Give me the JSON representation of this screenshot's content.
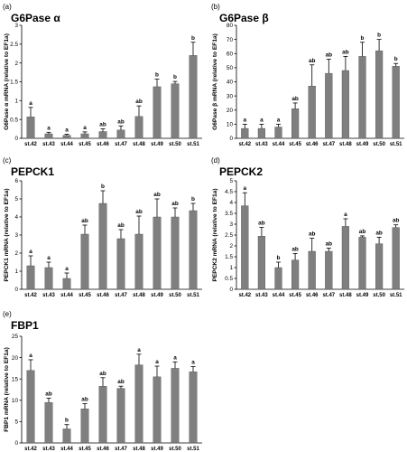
{
  "chart_data": [
    {
      "letter": "(a)",
      "type": "bar",
      "title": "G6Pase α",
      "ylabel": "G6Pase α mRNA (relative to EF1a)",
      "ylim": [
        0,
        3
      ],
      "yticks": [
        0,
        0.5,
        1,
        1.5,
        2,
        2.5,
        3
      ],
      "categories": [
        "st.42",
        "st.43",
        "st.44",
        "st.45",
        "st.46",
        "st.47",
        "st.48",
        "st.49",
        "st.50",
        "st.51"
      ],
      "values": [
        0.57,
        0.12,
        0.08,
        0.12,
        0.18,
        0.22,
        0.58,
        1.37,
        1.45,
        2.2
      ],
      "errors": [
        0.25,
        0.04,
        0.03,
        0.05,
        0.07,
        0.11,
        0.28,
        0.2,
        0.06,
        0.35
      ],
      "labels": [
        "a",
        "a",
        "a",
        "a",
        "ab",
        "ab",
        "ab",
        "b",
        "b",
        "b"
      ]
    },
    {
      "letter": "(b)",
      "type": "bar",
      "title": "G6Pase β",
      "ylabel": "G6Pase β mRNA (relative to EF1a)",
      "ylim": [
        0,
        80
      ],
      "yticks": [
        0,
        10,
        20,
        30,
        40,
        50,
        60,
        70,
        80
      ],
      "categories": [
        "st.42",
        "st.43",
        "st.44",
        "st.45",
        "st.46",
        "st.47",
        "st.48",
        "st.49",
        "st.50",
        "st.51"
      ],
      "values": [
        7,
        7,
        8,
        21,
        37,
        46,
        48,
        58,
        62,
        51
      ],
      "errors": [
        3,
        3,
        2,
        4,
        15,
        10,
        10,
        10,
        8,
        2
      ],
      "labels": [
        "a",
        "a",
        "a",
        "ab",
        "ab",
        "ab",
        "ab",
        "b",
        "b",
        "b"
      ]
    },
    {
      "letter": "(c)",
      "type": "bar",
      "title": "PEPCK1",
      "ylabel": "PEPCK1 mRNA (relative to EF1a)",
      "ylim": [
        0,
        6
      ],
      "yticks": [
        0,
        1,
        2,
        3,
        4,
        5,
        6
      ],
      "categories": [
        "st.42",
        "st.43",
        "st.44",
        "st.45",
        "st.46",
        "st.47",
        "st.48",
        "st.49",
        "st.50",
        "st.51"
      ],
      "values": [
        1.3,
        1.2,
        0.6,
        3.05,
        4.75,
        2.8,
        3.05,
        4.0,
        4.0,
        4.35
      ],
      "errors": [
        0.55,
        0.3,
        0.3,
        0.5,
        0.7,
        0.5,
        1.0,
        1.0,
        0.5,
        0.4
      ],
      "labels": [
        "a",
        "a",
        "a",
        "ab",
        "b",
        "ab",
        "ab",
        "ab",
        "ab",
        "b"
      ]
    },
    {
      "letter": "(d)",
      "type": "bar",
      "title": "PEPCK2",
      "ylabel": "PEPCK2 mRNA (relative to EF1a)",
      "ylim": [
        0,
        5
      ],
      "yticks": [
        0,
        0.5,
        1,
        1.5,
        2,
        2.5,
        3,
        3.5,
        4,
        4.5,
        5
      ],
      "categories": [
        "st.42",
        "st.43",
        "st.44",
        "st.45",
        "st.46",
        "st.47",
        "st.48",
        "st.49",
        "st.50",
        "st.51"
      ],
      "values": [
        3.85,
        2.45,
        1.0,
        1.35,
        1.75,
        1.75,
        2.9,
        2.4,
        2.1,
        2.85
      ],
      "errors": [
        0.6,
        0.4,
        0.25,
        0.3,
        0.6,
        0.15,
        0.35,
        0.06,
        0.3,
        0.12
      ],
      "labels": [
        "a",
        "ab",
        "b",
        "ab",
        "ab",
        "ab",
        "a",
        "ab",
        "ab",
        "ab"
      ]
    },
    {
      "letter": "(e)",
      "type": "bar",
      "title": "FBP1",
      "ylabel": "FBP1 mRNA (relative to EF1a)",
      "ylim": [
        0,
        25
      ],
      "yticks": [
        0,
        5,
        10,
        15,
        20,
        25
      ],
      "categories": [
        "st.42",
        "st.43",
        "st.44",
        "st.45",
        "st.46",
        "st.47",
        "st.48",
        "st.49",
        "st.50",
        "st.51"
      ],
      "values": [
        17,
        9.5,
        3.3,
        8,
        13.3,
        12.8,
        18.3,
        15.5,
        17.5,
        16.7
      ],
      "errors": [
        2.5,
        1.0,
        1.0,
        1.2,
        2.0,
        0.5,
        2.5,
        2.5,
        1.5,
        1.2
      ],
      "labels": [
        "a",
        "ab",
        "b",
        "ab",
        "ab",
        "ab",
        "a",
        "a",
        "a",
        "a"
      ]
    }
  ]
}
